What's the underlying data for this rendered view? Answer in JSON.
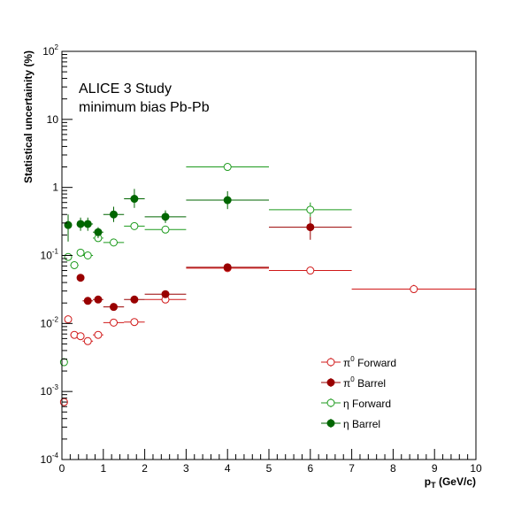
{
  "chart_data": {
    "type": "scatter",
    "annotation_lines": [
      "ALICE 3 Study",
      "minimum bias Pb-Pb"
    ],
    "xlabel": {
      "main": "p",
      "sub": "T",
      "rest": " (GeV/c)"
    },
    "ylabel": "Statistical uncertainity (%)",
    "xlim": [
      0,
      10
    ],
    "ylim": [
      0.0001,
      100
    ],
    "yscale": "log",
    "x_ticks": [
      "0",
      "1",
      "2",
      "3",
      "4",
      "5",
      "6",
      "7",
      "8",
      "9",
      "10"
    ],
    "y_ticks": [
      {
        "base": "10",
        "exp": "-4"
      },
      {
        "base": "10",
        "exp": "-3"
      },
      {
        "base": "10",
        "exp": "-2"
      },
      {
        "base": "10",
        "exp": "-1"
      },
      {
        "base": "1",
        "exp": ""
      },
      {
        "base": "10",
        "exp": ""
      },
      {
        "base": "10",
        "exp": "2"
      }
    ],
    "legend_position": "bottom-right",
    "series": [
      {
        "name": "π⁰ Forward",
        "legend_label": {
          "sym": "π",
          "sup": "0",
          "text": " Forward"
        },
        "color": "#d01818",
        "filled": false,
        "points": [
          {
            "x": 0.05,
            "xl": 0.0,
            "xh": 0.1,
            "y": 0.0007,
            "yl": 0.00065,
            "yh": 0.00078
          },
          {
            "x": 0.15,
            "xl": 0.1,
            "xh": 0.2,
            "y": 0.0115,
            "yl": 0.0108,
            "yh": 0.0122
          },
          {
            "x": 0.3,
            "xl": 0.2,
            "xh": 0.4,
            "y": 0.0068,
            "yl": 0.0064,
            "yh": 0.0072
          },
          {
            "x": 0.45,
            "xl": 0.4,
            "xh": 0.5,
            "y": 0.0065,
            "yl": 0.0061,
            "yh": 0.0069
          },
          {
            "x": 0.625,
            "xl": 0.5,
            "xh": 0.75,
            "y": 0.0055,
            "yl": 0.0052,
            "yh": 0.0058
          },
          {
            "x": 0.875,
            "xl": 0.75,
            "xh": 1.0,
            "y": 0.0068,
            "yl": 0.0064,
            "yh": 0.0072
          },
          {
            "x": 1.25,
            "xl": 1.0,
            "xh": 1.5,
            "y": 0.0103,
            "yl": 0.0098,
            "yh": 0.0108
          },
          {
            "x": 1.75,
            "xl": 1.5,
            "xh": 2.0,
            "y": 0.0105,
            "yl": 0.01,
            "yh": 0.011
          },
          {
            "x": 2.5,
            "xl": 2.0,
            "xh": 3.0,
            "y": 0.0225,
            "yl": 0.0214,
            "yh": 0.0236
          },
          {
            "x": 4.0,
            "xl": 3.0,
            "xh": 5.0,
            "y": 0.065,
            "yl": 0.062,
            "yh": 0.068
          },
          {
            "x": 6.0,
            "xl": 5.0,
            "xh": 7.0,
            "y": 0.06,
            "yl": 0.055,
            "yh": 0.066
          },
          {
            "x": 8.5,
            "xl": 7.0,
            "xh": 10.0,
            "y": 0.032,
            "yl": 0.028,
            "yh": 0.037
          }
        ]
      },
      {
        "name": "π⁰ Barrel",
        "legend_label": {
          "sym": "π",
          "sup": "0",
          "text": " Barrel"
        },
        "color": "#990000",
        "filled": true,
        "points": [
          {
            "x": 0.45,
            "xl": 0.4,
            "xh": 0.5,
            "y": 0.047,
            "yl": 0.044,
            "yh": 0.05
          },
          {
            "x": 0.625,
            "xl": 0.5,
            "xh": 0.75,
            "y": 0.0215,
            "yl": 0.0205,
            "yh": 0.0225
          },
          {
            "x": 0.875,
            "xl": 0.75,
            "xh": 1.0,
            "y": 0.0225,
            "yl": 0.0215,
            "yh": 0.0235
          },
          {
            "x": 1.25,
            "xl": 1.0,
            "xh": 1.5,
            "y": 0.0175,
            "yl": 0.0167,
            "yh": 0.0183
          },
          {
            "x": 1.75,
            "xl": 1.5,
            "xh": 2.0,
            "y": 0.0225,
            "yl": 0.0215,
            "yh": 0.0235
          },
          {
            "x": 2.5,
            "xl": 2.0,
            "xh": 3.0,
            "y": 0.027,
            "yl": 0.0258,
            "yh": 0.0282
          },
          {
            "x": 4.0,
            "xl": 3.0,
            "xh": 5.0,
            "y": 0.067,
            "yl": 0.059,
            "yh": 0.076
          },
          {
            "x": 6.0,
            "xl": 5.0,
            "xh": 7.0,
            "y": 0.26,
            "yl": 0.17,
            "yh": 0.37
          }
        ]
      },
      {
        "name": "η Forward",
        "legend_label": {
          "sym": "η",
          "sup": "",
          "text": " Forward"
        },
        "color": "#1c9a1c",
        "filled": false,
        "points": [
          {
            "x": 0.05,
            "xl": 0.0,
            "xh": 0.1,
            "y": 0.0027,
            "yl": 0.0024,
            "yh": 0.003
          },
          {
            "x": 0.15,
            "xl": 0.1,
            "xh": 0.2,
            "y": 0.095,
            "yl": 0.09,
            "yh": 0.1
          },
          {
            "x": 0.3,
            "xl": 0.2,
            "xh": 0.4,
            "y": 0.072,
            "yl": 0.068,
            "yh": 0.076
          },
          {
            "x": 0.45,
            "xl": 0.4,
            "xh": 0.5,
            "y": 0.11,
            "yl": 0.104,
            "yh": 0.116
          },
          {
            "x": 0.625,
            "xl": 0.5,
            "xh": 0.75,
            "y": 0.1,
            "yl": 0.095,
            "yh": 0.105
          },
          {
            "x": 0.875,
            "xl": 0.75,
            "xh": 1.0,
            "y": 0.18,
            "yl": 0.17,
            "yh": 0.19
          },
          {
            "x": 1.25,
            "xl": 1.0,
            "xh": 1.5,
            "y": 0.155,
            "yl": 0.147,
            "yh": 0.163
          },
          {
            "x": 1.75,
            "xl": 1.5,
            "xh": 2.0,
            "y": 0.27,
            "yl": 0.256,
            "yh": 0.284
          },
          {
            "x": 2.5,
            "xl": 2.0,
            "xh": 3.0,
            "y": 0.24,
            "yl": 0.228,
            "yh": 0.252
          },
          {
            "x": 4.0,
            "xl": 3.0,
            "xh": 5.0,
            "y": 2.0,
            "yl": 1.9,
            "yh": 2.1
          },
          {
            "x": 6.0,
            "xl": 5.0,
            "xh": 7.0,
            "y": 0.47,
            "yl": 0.37,
            "yh": 0.6
          }
        ]
      },
      {
        "name": "η Barrel",
        "legend_label": {
          "sym": "η",
          "sup": "",
          "text": " Barrel"
        },
        "color": "#006600",
        "filled": true,
        "points": [
          {
            "x": 0.15,
            "xl": 0.1,
            "xh": 0.2,
            "y": 0.28,
            "yl": 0.16,
            "yh": 0.4
          },
          {
            "x": 0.45,
            "xl": 0.4,
            "xh": 0.5,
            "y": 0.29,
            "yl": 0.23,
            "yh": 0.36
          },
          {
            "x": 0.625,
            "xl": 0.5,
            "xh": 0.75,
            "y": 0.29,
            "yl": 0.23,
            "yh": 0.36
          },
          {
            "x": 0.875,
            "xl": 0.75,
            "xh": 1.0,
            "y": 0.22,
            "yl": 0.18,
            "yh": 0.26
          },
          {
            "x": 1.25,
            "xl": 1.0,
            "xh": 1.5,
            "y": 0.4,
            "yl": 0.31,
            "yh": 0.52
          },
          {
            "x": 1.75,
            "xl": 1.5,
            "xh": 2.0,
            "y": 0.68,
            "yl": 0.5,
            "yh": 0.95
          },
          {
            "x": 2.5,
            "xl": 2.0,
            "xh": 3.0,
            "y": 0.37,
            "yl": 0.3,
            "yh": 0.46
          },
          {
            "x": 4.0,
            "xl": 3.0,
            "xh": 5.0,
            "y": 0.65,
            "yl": 0.48,
            "yh": 0.88
          }
        ]
      }
    ]
  }
}
